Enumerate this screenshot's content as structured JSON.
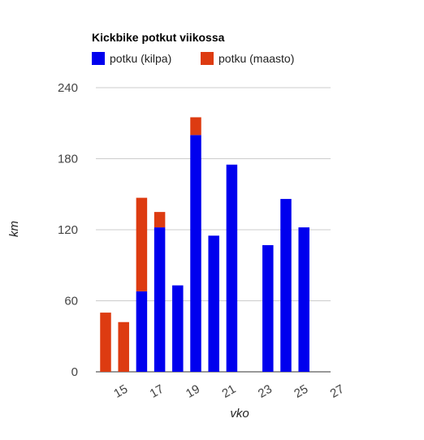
{
  "chart_data": {
    "type": "bar",
    "stacked": true,
    "title": "Kickbike potkut viikossa",
    "xlabel": "vko",
    "ylabel": "km",
    "ylim": [
      0,
      240
    ],
    "y_ticks": [
      0,
      60,
      120,
      180,
      240
    ],
    "x_tick_labels": [
      "15",
      "17",
      "19",
      "21",
      "23",
      "25",
      "27"
    ],
    "x_tick_weeks": [
      15,
      17,
      19,
      21,
      23,
      25,
      27
    ],
    "grid": true,
    "legend_position": "top-left",
    "categories": [
      14,
      15,
      16,
      17,
      18,
      19,
      20,
      21,
      22,
      23,
      24,
      25
    ],
    "series": [
      {
        "name": "potku (kilpa)",
        "color": "#0000ee",
        "values": [
          0,
          0,
          68,
          122,
          73,
          200,
          115,
          175,
          0,
          107,
          146,
          122
        ]
      },
      {
        "name": "potku (maasto)",
        "color": "#dd3b11",
        "values": [
          50,
          42,
          79,
          13,
          0,
          15,
          0,
          0,
          0,
          0,
          0,
          0
        ]
      }
    ]
  }
}
